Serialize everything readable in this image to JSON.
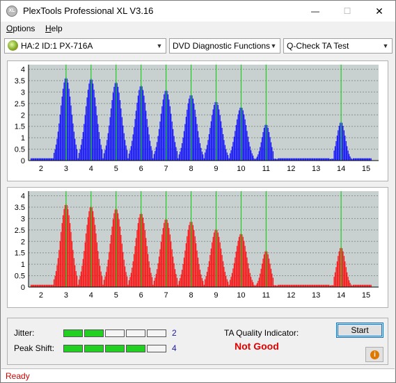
{
  "window": {
    "title": "PlexTools Professional XL V3.16",
    "icon_text": "XL",
    "minimize_glyph": "—",
    "maximize_glyph": "☐",
    "close_glyph": "✕"
  },
  "menu": {
    "options_first": "O",
    "options_rest": "ptions",
    "help_first": "H",
    "help_rest": "elp"
  },
  "toolbar": {
    "drive_value": "HA:2 ID:1  PX-716A",
    "function_value": "DVD Diagnostic Functions",
    "test_value": "Q-Check TA Test",
    "dropdown_glyph": "▼"
  },
  "colors": {
    "chart_bg": "#c8d0d0",
    "grid": "#8a9090",
    "green_marker": "#00cc00",
    "top_series": "#0000ff",
    "bottom_series": "#ff0000"
  },
  "chart_data": [
    {
      "type": "bar",
      "series_color": "#0000ff",
      "x_ticks": [
        "2",
        "3",
        "4",
        "5",
        "6",
        "7",
        "8",
        "9",
        "10",
        "11",
        "12",
        "13",
        "14",
        "15"
      ],
      "y_ticks": [
        "0",
        "0.5",
        "1",
        "1.5",
        "2",
        "2.5",
        "3",
        "3.5",
        "4"
      ],
      "xlim": [
        1.5,
        15.5
      ],
      "ylim": [
        0,
        4.2
      ],
      "markers": [
        3,
        4,
        5,
        6,
        7,
        8,
        9,
        10,
        11,
        14
      ],
      "peaks": [
        {
          "x": 3,
          "y": 3.65
        },
        {
          "x": 4,
          "y": 3.6
        },
        {
          "x": 5,
          "y": 3.45
        },
        {
          "x": 6,
          "y": 3.3
        },
        {
          "x": 7,
          "y": 3.1
        },
        {
          "x": 8,
          "y": 2.9
        },
        {
          "x": 9,
          "y": 2.6
        },
        {
          "x": 10,
          "y": 2.35
        },
        {
          "x": 11,
          "y": 1.6
        },
        {
          "x": 14,
          "y": 1.7
        }
      ]
    },
    {
      "type": "bar",
      "series_color": "#ff0000",
      "x_ticks": [
        "2",
        "3",
        "4",
        "5",
        "6",
        "7",
        "8",
        "9",
        "10",
        "11",
        "12",
        "13",
        "14",
        "15"
      ],
      "y_ticks": [
        "0",
        "0.5",
        "1",
        "1.5",
        "2",
        "2.5",
        "3",
        "3.5",
        "4"
      ],
      "xlim": [
        1.5,
        15.5
      ],
      "ylim": [
        0,
        4.2
      ],
      "markers": [
        3,
        4,
        5,
        6,
        7,
        8,
        9,
        10,
        11,
        14
      ],
      "peaks": [
        {
          "x": 3,
          "y": 3.65
        },
        {
          "x": 4,
          "y": 3.55
        },
        {
          "x": 5,
          "y": 3.45
        },
        {
          "x": 6,
          "y": 3.25
        },
        {
          "x": 7,
          "y": 3.0
        },
        {
          "x": 8,
          "y": 2.9
        },
        {
          "x": 9,
          "y": 2.55
        },
        {
          "x": 10,
          "y": 2.35
        },
        {
          "x": 11,
          "y": 1.6
        },
        {
          "x": 14,
          "y": 1.75
        }
      ]
    }
  ],
  "results": {
    "jitter_label": "Jitter:",
    "jitter_score": "2",
    "jitter_level": 2,
    "peak_shift_label": "Peak Shift:",
    "peak_shift_score": "4",
    "peak_shift_level": 4,
    "led_count": 5,
    "ta_quality_label": "TA Quality Indicator:",
    "ta_quality_value": "Not Good",
    "start_label": "Start",
    "info_glyph": "i"
  },
  "status": {
    "text": "Ready"
  }
}
